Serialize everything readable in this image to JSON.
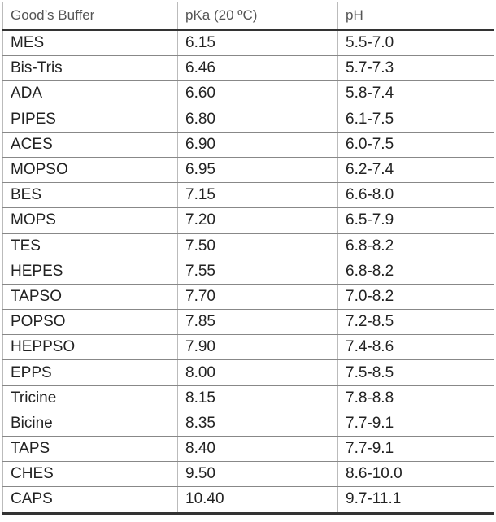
{
  "table": {
    "header": [
      "Good’s Buffer",
      "pKa (20 ºC)",
      "pH"
    ],
    "rows": [
      [
        "MES",
        "6.15",
        "5.5-7.0"
      ],
      [
        "Bis-Tris",
        "6.46",
        "5.7-7.3"
      ],
      [
        "ADA",
        "6.60",
        "5.8-7.4"
      ],
      [
        "PIPES",
        "6.80",
        "6.1-7.5"
      ],
      [
        "ACES",
        "6.90",
        "6.0-7.5"
      ],
      [
        "MOPSO",
        "6.95",
        "6.2-7.4"
      ],
      [
        "BES",
        "7.15",
        "6.6-8.0"
      ],
      [
        "MOPS",
        "7.20",
        "6.5-7.9"
      ],
      [
        "TES",
        "7.50",
        "6.8-8.2"
      ],
      [
        "HEPES",
        "7.55",
        "6.8-8.2"
      ],
      [
        "TAPSO",
        "7.70",
        "7.0-8.2"
      ],
      [
        "POPSO",
        "7.85",
        "7.2-8.5"
      ],
      [
        "HEPPSO",
        "7.90",
        "7.4-8.6"
      ],
      [
        "EPPS",
        "8.00",
        "7.5-8.5"
      ],
      [
        "Tricine",
        "8.15",
        "7.8-8.8"
      ],
      [
        "Bicine",
        "8.35",
        "7.7-9.1"
      ],
      [
        "TAPS",
        "8.40",
        "7.7-9.1"
      ],
      [
        "CHES",
        "9.50",
        "8.6-10.0"
      ],
      [
        "CAPS",
        "10.40",
        "9.7-11.1"
      ]
    ]
  }
}
